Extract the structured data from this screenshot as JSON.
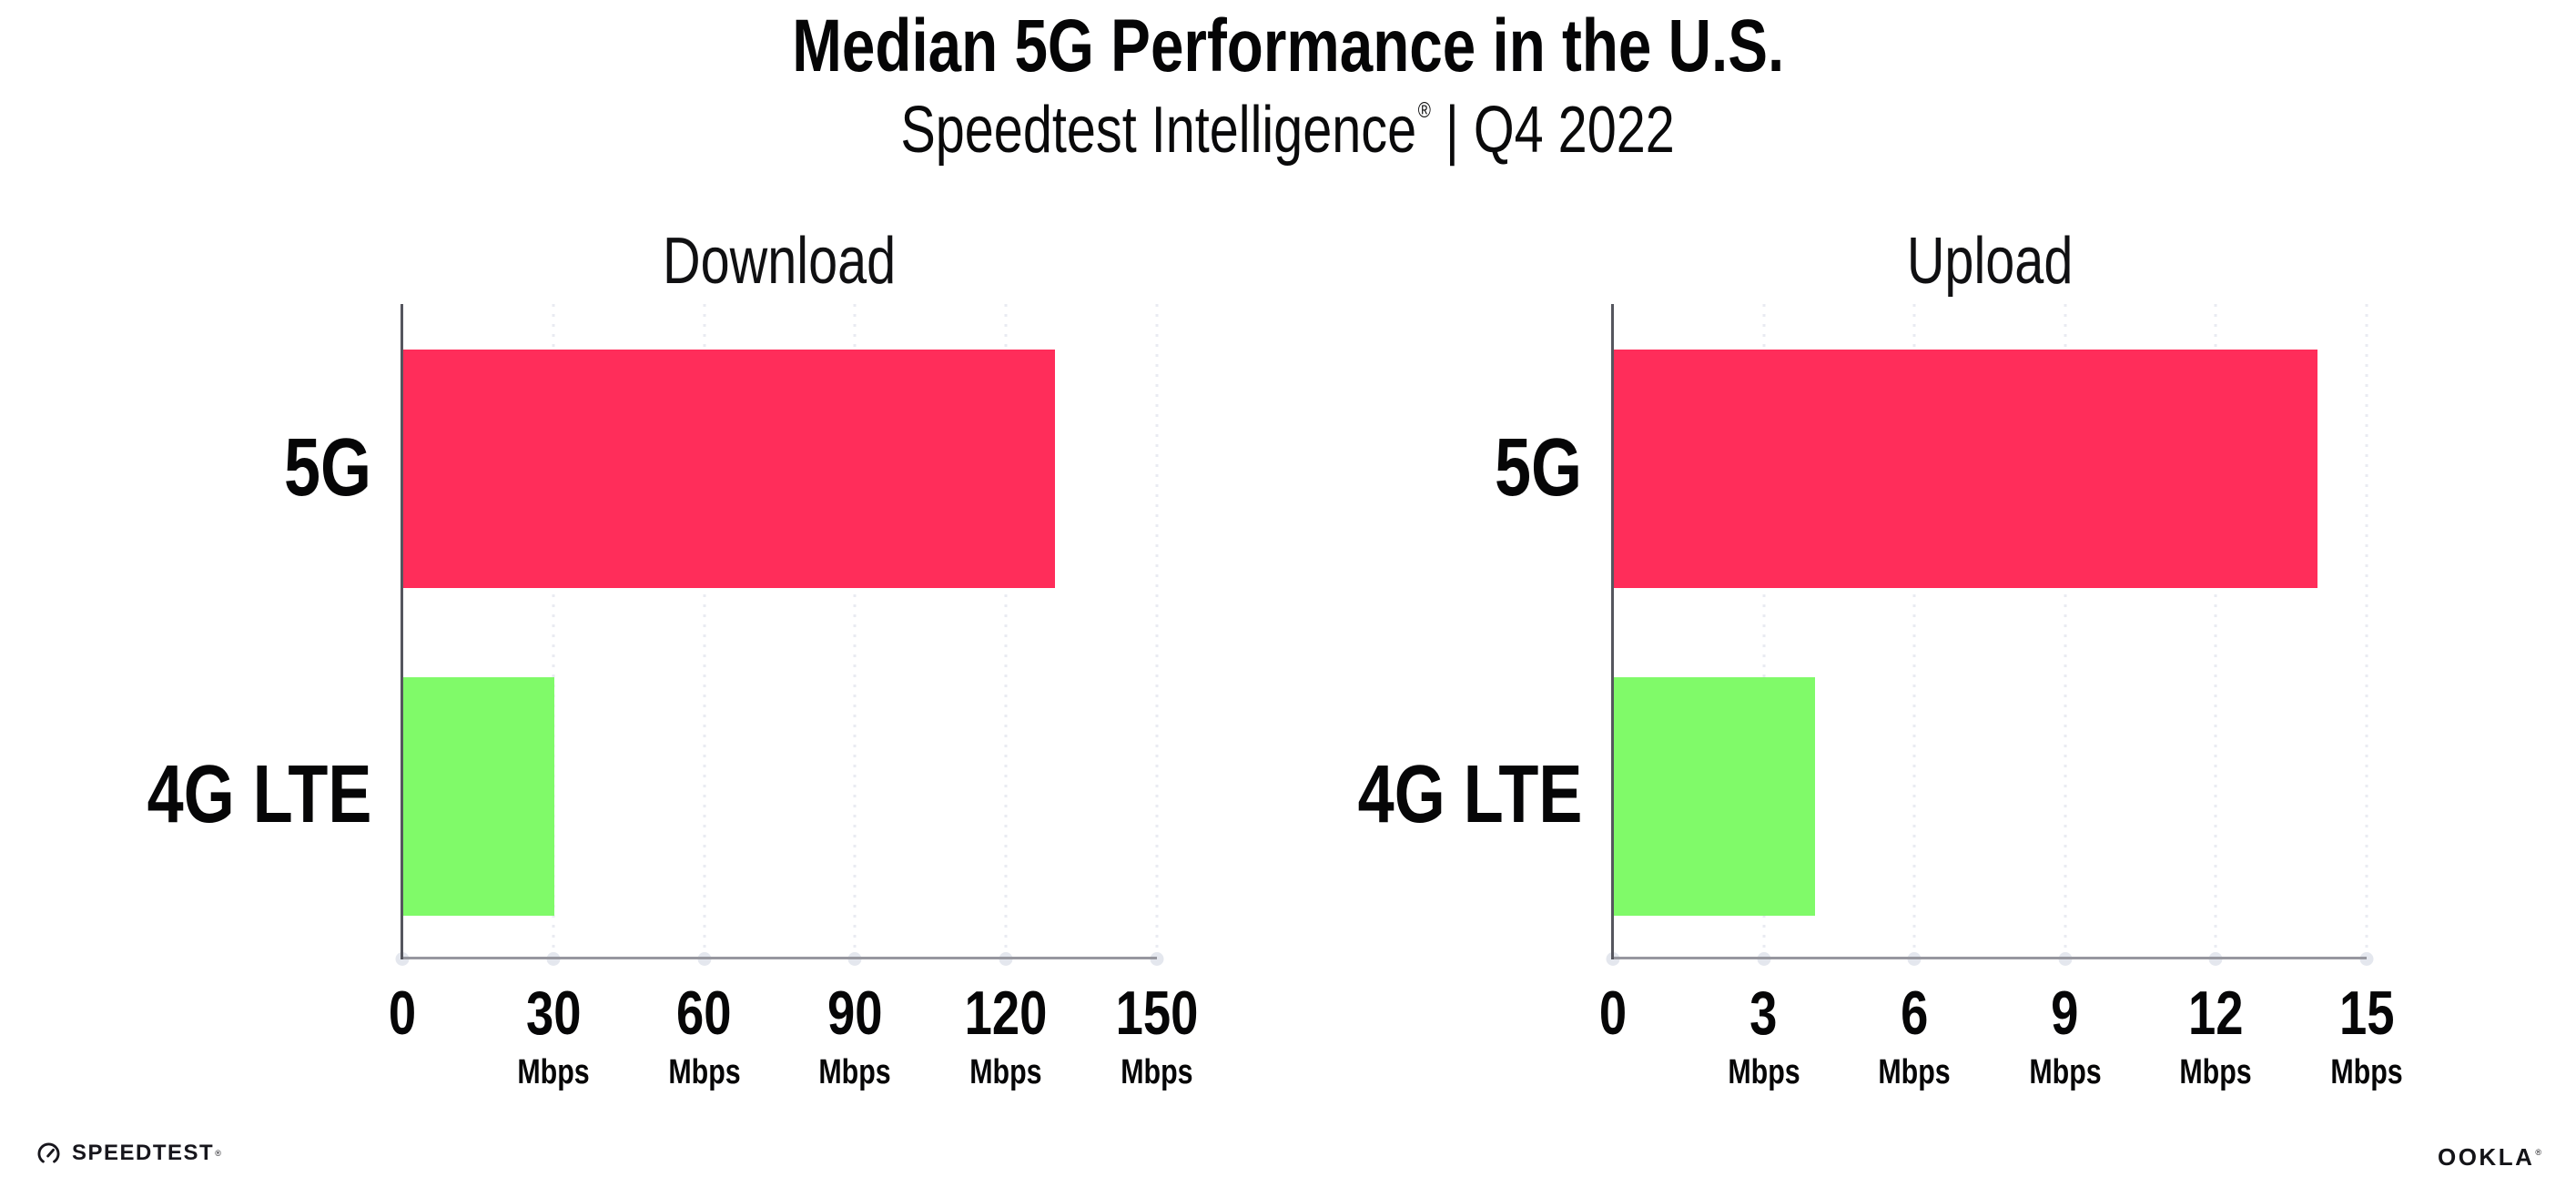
{
  "header": {
    "title": "Median 5G Performance in the U.S.",
    "subtitle_brand": "Speedtest Intelligence",
    "subtitle_reg": "®",
    "subtitle_sep": "|",
    "subtitle_period": "Q4 2022"
  },
  "colors": {
    "bar_5g": "#ff2d5a",
    "bar_4g_lte": "#80fa69",
    "axis_x": "#97979f",
    "axis_y": "#55565e",
    "grid_dot": "#e9ebf2",
    "tick_dot": "#e4e7ee",
    "text": "#0a0a0b"
  },
  "chart_data": [
    {
      "type": "bar",
      "orientation": "horizontal",
      "title": "Download",
      "categories": [
        "5G",
        "4G LTE"
      ],
      "values": [
        129.5,
        30
      ],
      "unit": "Mbps",
      "tick_unit": "Mbps",
      "xlim": [
        0,
        150
      ],
      "ticks": [
        0,
        30,
        60,
        90,
        120,
        150
      ],
      "bar_colors": [
        "#ff2d5a",
        "#80fa69"
      ],
      "grid": "vertical-dotted",
      "legend": "none",
      "note": "tick labels show unit Mbps under every tick except 0"
    },
    {
      "type": "bar",
      "orientation": "horizontal",
      "title": "Upload",
      "categories": [
        "5G",
        "4G LTE"
      ],
      "values": [
        14,
        4
      ],
      "unit": "Mbps",
      "tick_unit": "Mbps",
      "xlim": [
        0,
        15
      ],
      "ticks": [
        0,
        3,
        6,
        9,
        12,
        15
      ],
      "bar_colors": [
        "#ff2d5a",
        "#80fa69"
      ],
      "grid": "vertical-dotted",
      "legend": "none",
      "note": "tick labels show unit Mbps under every tick except 0"
    }
  ],
  "footer": {
    "speedtest_label": "SPEEDTEST",
    "speedtest_reg": "®",
    "ookla_label": "OOKLA",
    "ookla_reg": "®"
  }
}
